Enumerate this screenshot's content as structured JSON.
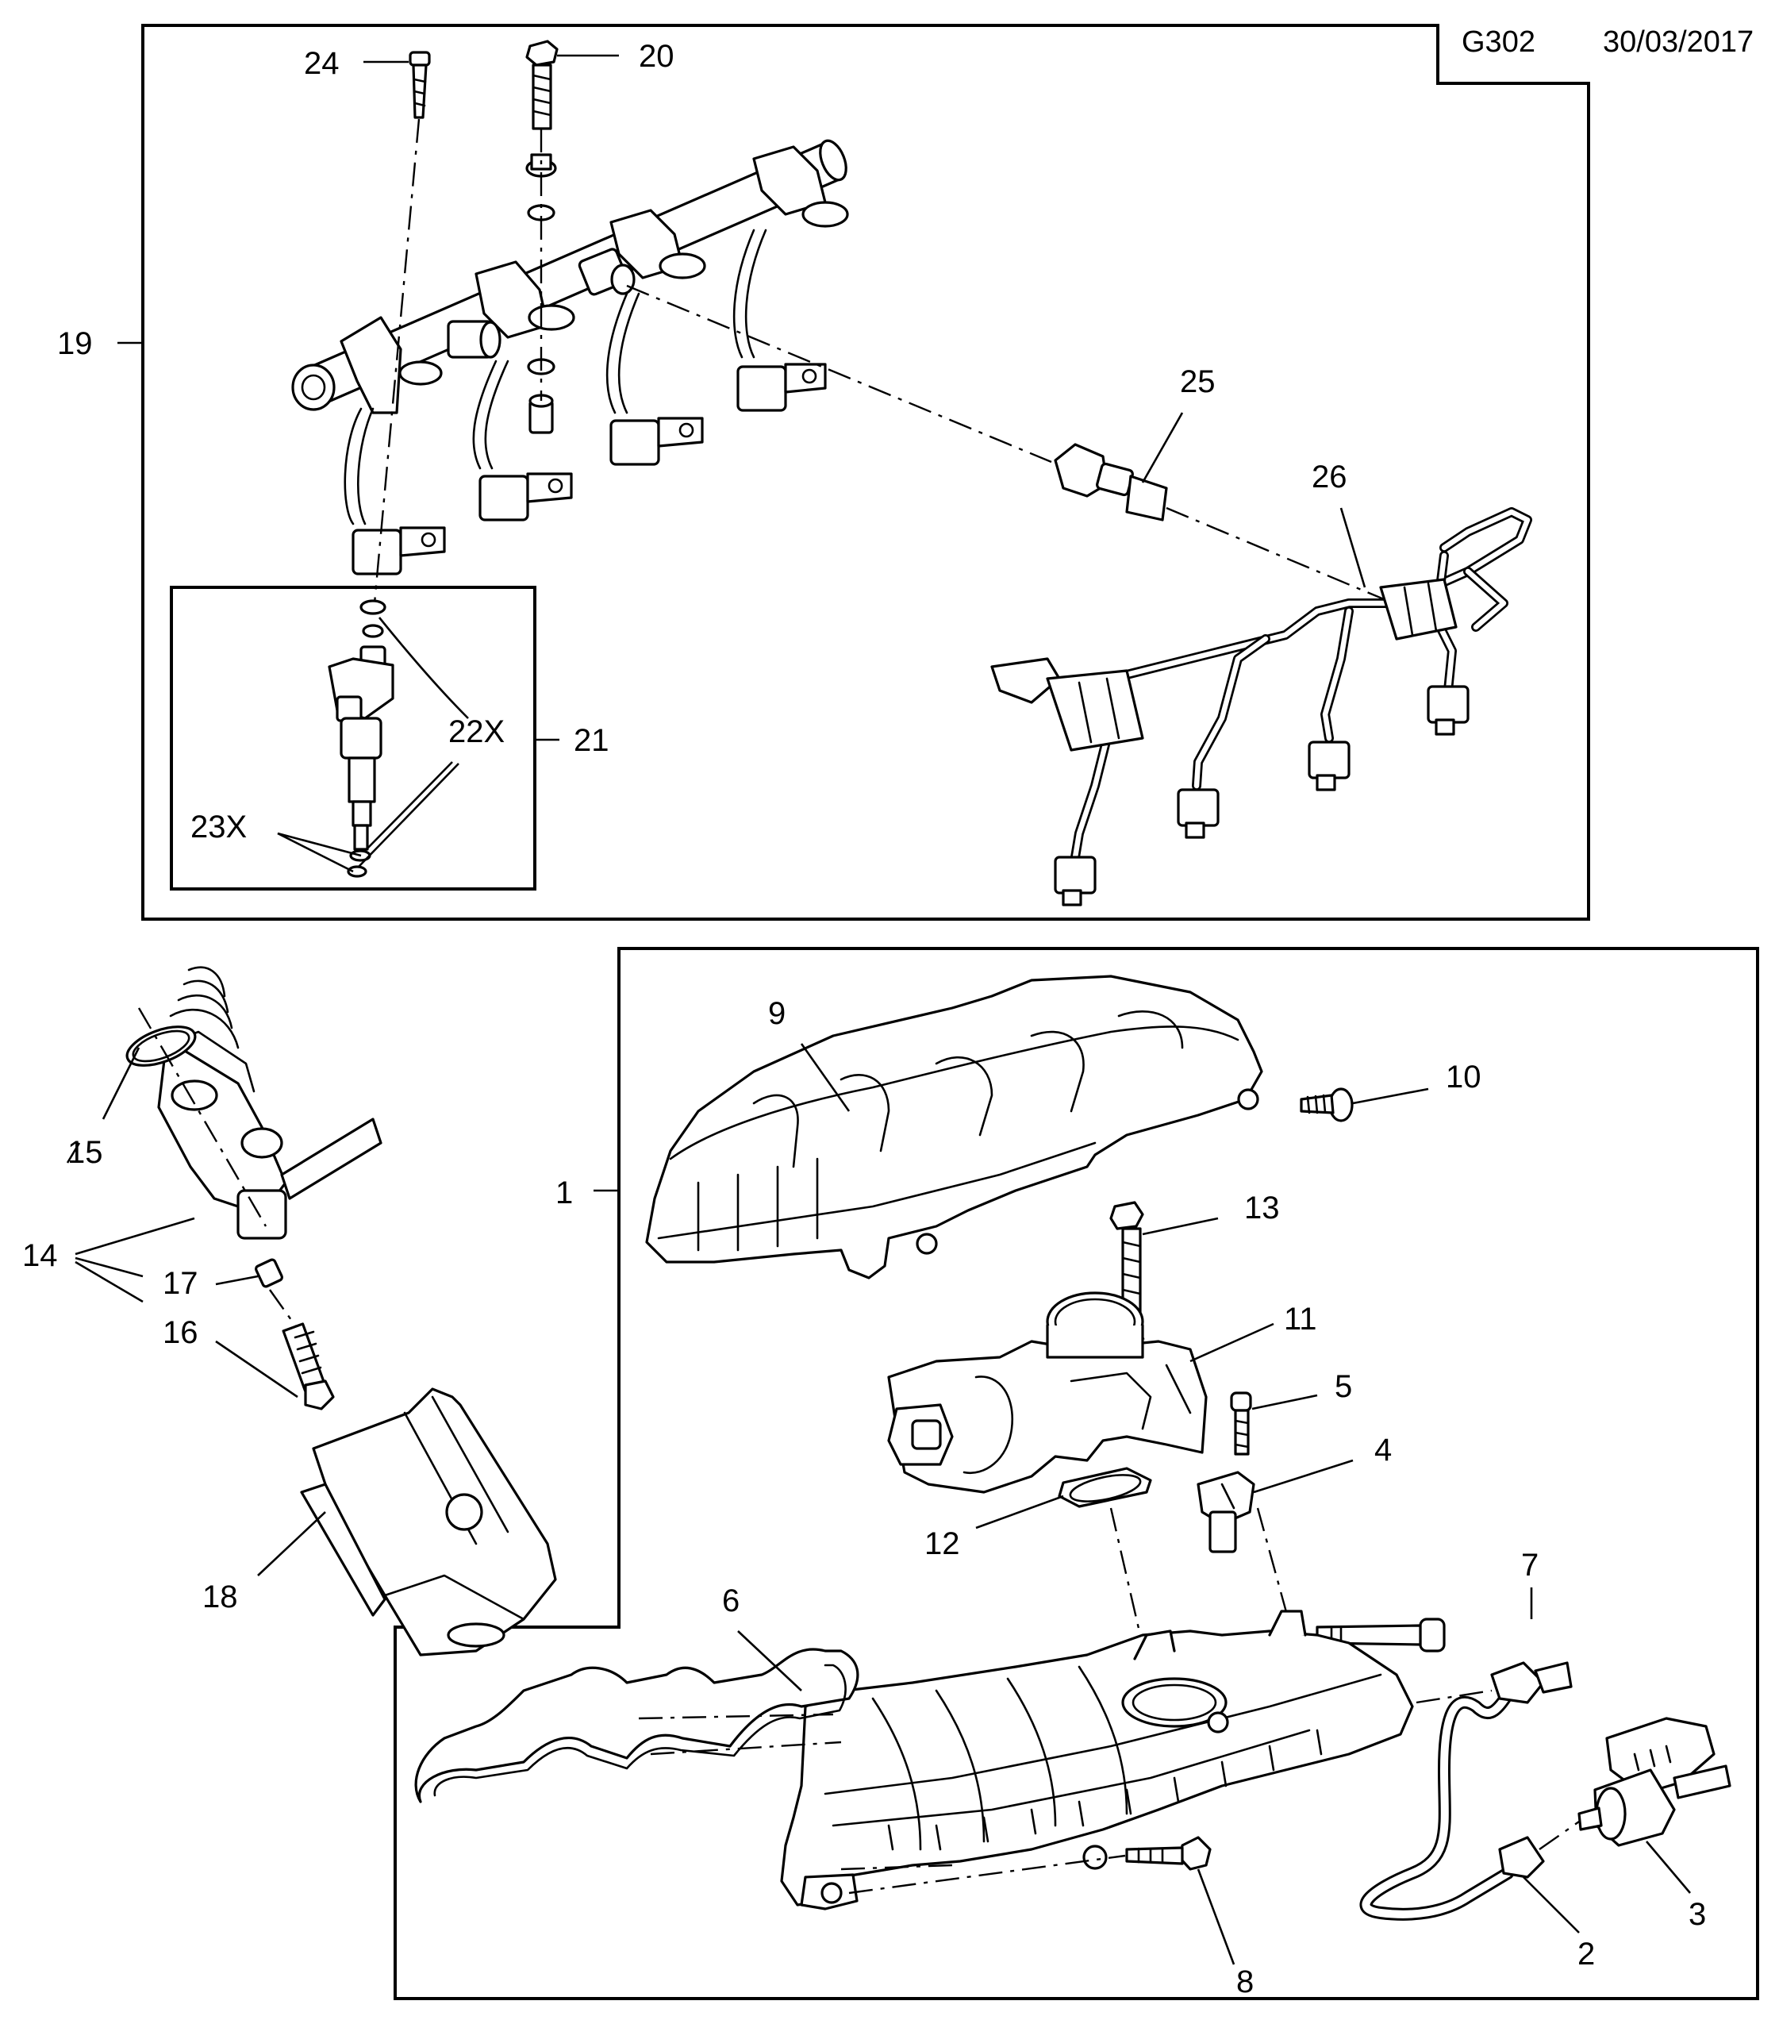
{
  "header": {
    "code": "G302",
    "date": "30/03/2017"
  },
  "callouts": {
    "c1": "1",
    "c2": "2",
    "c3": "3",
    "c4": "4",
    "c5": "5",
    "c6": "6",
    "c7": "7",
    "c8": "8",
    "c9": "9",
    "c10": "10",
    "c11": "11",
    "c12": "12",
    "c13": "13",
    "c14": "14",
    "c15": "15",
    "c16": "16",
    "c17": "17",
    "c18": "18",
    "c19": "19",
    "c20": "20",
    "c21": "21",
    "c22": "22X",
    "c23": "23X",
    "c24": "24",
    "c25": "25",
    "c26": "26"
  }
}
